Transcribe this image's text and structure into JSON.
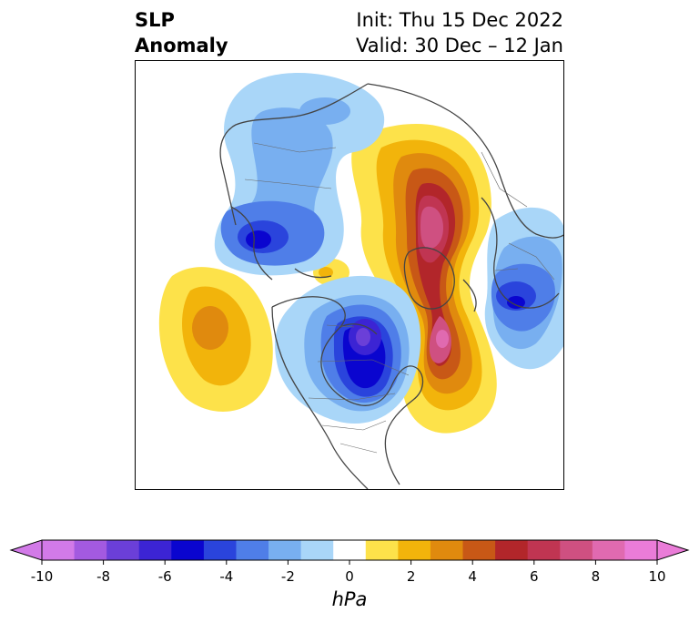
{
  "title": {
    "left_line1": "SLP",
    "left_line2": "Anomaly",
    "init": "Init: Thu 15 Dec 2022",
    "valid": "Valid: 30 Dec – 12 Jan"
  },
  "map": {
    "field": "SLP anomaly",
    "projection": "polar stereographic (North Pole)",
    "features": [
      {
        "name": "Arctic / northern Russia high",
        "sign": "positive",
        "peak_hpa": 8
      },
      {
        "name": "Greenland–North Atlantic high",
        "sign": "positive",
        "peak_hpa": 8
      },
      {
        "name": "North Pacific high",
        "sign": "positive",
        "peak_hpa": 4
      },
      {
        "name": "Hudson Bay / central Canada low",
        "sign": "negative",
        "peak_hpa": -8
      },
      {
        "name": "Siberia / East Asia low",
        "sign": "negative",
        "peak_hpa": -6
      },
      {
        "name": "Western Europe low",
        "sign": "negative",
        "peak_hpa": -6
      }
    ]
  },
  "colorbar": {
    "unit": "hPa",
    "extend": "both",
    "levels": [
      -10,
      -9,
      -8,
      -7,
      -6,
      -5,
      -4,
      -3,
      -2,
      -1,
      1,
      2,
      3,
      4,
      5,
      6,
      7,
      8,
      9,
      10
    ],
    "colors": [
      "#d27ae8",
      "#a35ae0",
      "#6b3fd8",
      "#3c24d4",
      "#0a05cf",
      "#2a44dc",
      "#4f7ee8",
      "#78aff0",
      "#a9d6f8",
      "#ffffff",
      "#fde24a",
      "#f2b40b",
      "#e08a0e",
      "#c85816",
      "#b2262a",
      "#c03552",
      "#cf5081",
      "#e06ab0",
      "#ea7cd8"
    ],
    "tick_labels": [
      "-10",
      "-8",
      "-6",
      "-4",
      "-2",
      "0",
      "2",
      "4",
      "6",
      "8",
      "10"
    ],
    "tick_values": [
      -10,
      -8,
      -6,
      -4,
      -2,
      0,
      2,
      4,
      6,
      8,
      10
    ]
  }
}
